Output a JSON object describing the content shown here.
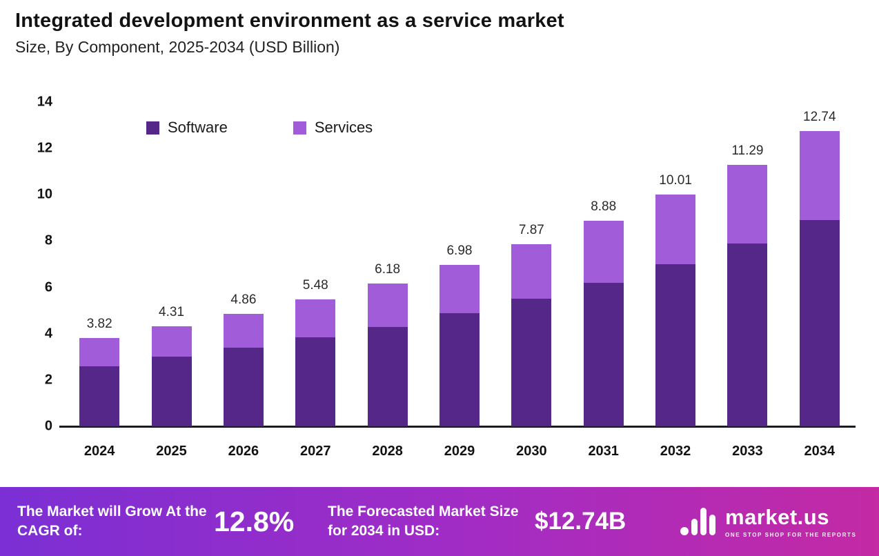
{
  "header": {
    "title": "Integrated development environment as a service market",
    "subtitle": "Size, By Component, 2025-2034 (USD Billion)"
  },
  "chart_data": {
    "type": "bar",
    "stacked": true,
    "title": "Integrated development environment as a service market Size, By Component, 2025-2034 (USD Billion)",
    "categories": [
      "2024",
      "2025",
      "2026",
      "2027",
      "2028",
      "2029",
      "2030",
      "2031",
      "2032",
      "2033",
      "2034"
    ],
    "series": [
      {
        "name": "Software",
        "color": "#552788",
        "values": [
          2.6,
          3.0,
          3.4,
          3.85,
          4.3,
          4.9,
          5.5,
          6.2,
          7.0,
          7.9,
          8.9
        ]
      },
      {
        "name": "Services",
        "color": "#A05CD9",
        "values": [
          1.22,
          1.31,
          1.46,
          1.63,
          1.88,
          2.08,
          2.37,
          2.68,
          3.01,
          3.39,
          3.84
        ]
      }
    ],
    "totals": [
      3.82,
      4.31,
      4.86,
      5.48,
      6.18,
      6.98,
      7.87,
      8.88,
      10.01,
      11.29,
      12.74
    ],
    "xlabel": "",
    "ylabel": "",
    "ylim": [
      0,
      14
    ],
    "yticks": [
      0,
      2,
      4,
      6,
      8,
      10,
      12,
      14
    ],
    "grid": false,
    "legend_position": "top-left-inside"
  },
  "footer": {
    "cagr_label": "The Market will Grow At the CAGR of:",
    "cagr_value": "12.8%",
    "forecast_label": "The Forecasted Market Size for 2034 in USD:",
    "forecast_value": "$12.74B",
    "logo_text": "market.us",
    "logo_tagline": "ONE STOP SHOP FOR THE REPORTS",
    "gradient_left": "#7B2FD4",
    "gradient_mid": "#A32CC4",
    "gradient_right": "#C32AA4"
  }
}
